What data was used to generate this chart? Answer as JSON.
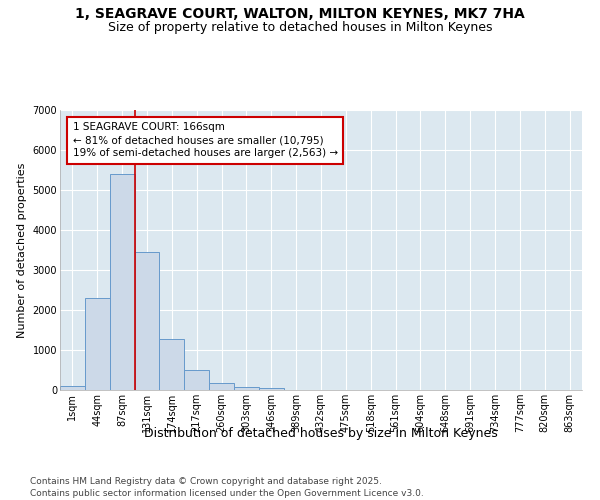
{
  "title": "1, SEAGRAVE COURT, WALTON, MILTON KEYNES, MK7 7HA",
  "subtitle": "Size of property relative to detached houses in Milton Keynes",
  "xlabel": "Distribution of detached houses by size in Milton Keynes",
  "ylabel": "Number of detached properties",
  "bar_color": "#ccd9e8",
  "bar_edge_color": "#6699cc",
  "background_color": "#dce8f0",
  "grid_color": "#ffffff",
  "categories": [
    "1sqm",
    "44sqm",
    "87sqm",
    "131sqm",
    "174sqm",
    "217sqm",
    "260sqm",
    "303sqm",
    "346sqm",
    "389sqm",
    "432sqm",
    "475sqm",
    "518sqm",
    "561sqm",
    "604sqm",
    "648sqm",
    "691sqm",
    "734sqm",
    "777sqm",
    "820sqm",
    "863sqm"
  ],
  "values": [
    100,
    2300,
    5400,
    3450,
    1280,
    500,
    170,
    80,
    40,
    10,
    0,
    0,
    0,
    0,
    0,
    0,
    0,
    0,
    0,
    0,
    0
  ],
  "ylim": [
    0,
    7000
  ],
  "yticks": [
    0,
    1000,
    2000,
    3000,
    4000,
    5000,
    6000,
    7000
  ],
  "property_line_after_index": 2,
  "property_line_color": "#cc0000",
  "annotation_text": "1 SEAGRAVE COURT: 166sqm\n← 81% of detached houses are smaller (10,795)\n19% of semi-detached houses are larger (2,563) →",
  "annotation_box_color": "#cc0000",
  "footnote1": "Contains HM Land Registry data © Crown copyright and database right 2025.",
  "footnote2": "Contains public sector information licensed under the Open Government Licence v3.0.",
  "title_fontsize": 10,
  "subtitle_fontsize": 9,
  "xlabel_fontsize": 9,
  "ylabel_fontsize": 8,
  "tick_fontsize": 7,
  "annotation_fontsize": 7.5,
  "footnote_fontsize": 6.5
}
